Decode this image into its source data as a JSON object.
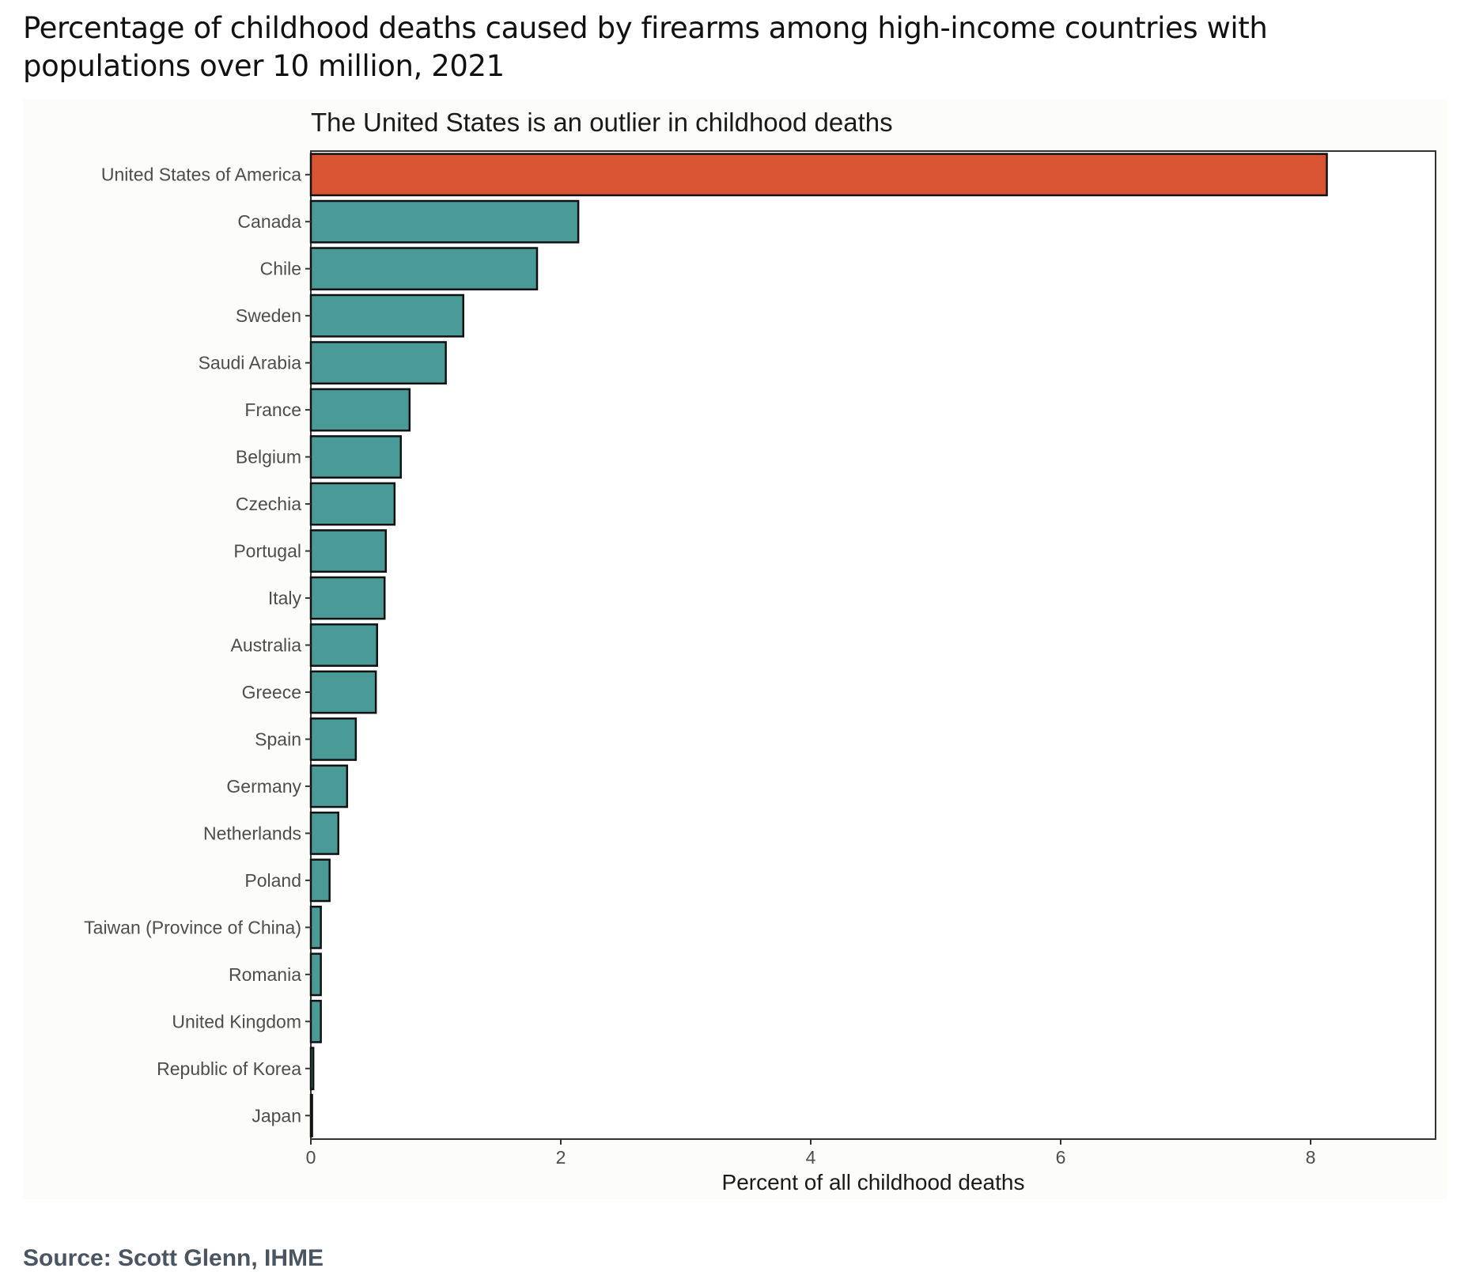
{
  "page": {
    "title": "Percentage of childhood deaths caused by firearms among high-income countries with populations over 10 million, 2021",
    "source": "Source: Scott Glenn, IHME"
  },
  "colors": {
    "highlight_bar": "#d95433",
    "default_bar": "#4a9b97",
    "bar_outline": "#111111",
    "panel_border": "#333333",
    "text_dark": "#1a1a1a",
    "text_axis": "#4d4d4d",
    "source_text": "#4a5561"
  },
  "chart_data": {
    "type": "bar",
    "orientation": "horizontal",
    "subtitle": "The United States is an outlier in childhood deaths",
    "xlabel": "Percent of all childhood deaths",
    "ylabel": "",
    "xlim": [
      0,
      9
    ],
    "xticks": [
      0,
      2,
      4,
      6,
      8
    ],
    "grid": false,
    "legend": "none",
    "highlight": "United States of America",
    "categories": [
      "United States of America",
      "Canada",
      "Chile",
      "Sweden",
      "Saudi Arabia",
      "France",
      "Belgium",
      "Czechia",
      "Portugal",
      "Italy",
      "Australia",
      "Greece",
      "Spain",
      "Germany",
      "Netherlands",
      "Poland",
      "Taiwan (Province of China)",
      "Romania",
      "United Kingdom",
      "Republic of Korea",
      "Japan"
    ],
    "values": [
      8.13,
      2.14,
      1.81,
      1.22,
      1.08,
      0.79,
      0.72,
      0.67,
      0.6,
      0.59,
      0.53,
      0.52,
      0.36,
      0.29,
      0.22,
      0.15,
      0.08,
      0.08,
      0.08,
      0.02,
      0.01
    ]
  }
}
